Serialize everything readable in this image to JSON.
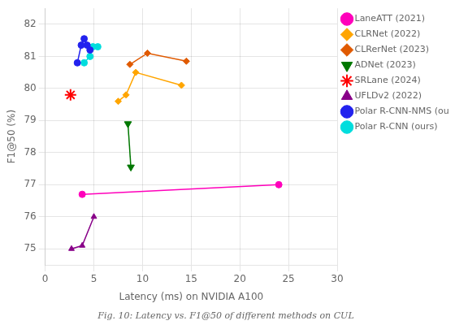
{
  "chart_data": {
    "type": "line",
    "xlabel": "Latency (ms) on NVIDIA A100",
    "ylabel": "F1@50 (%)",
    "caption": "Fig. 10: Latency vs. F1@50 of different methods on CUL",
    "xlim": [
      0,
      30
    ],
    "ylim": [
      74.5,
      82.5
    ],
    "xticks": [
      0,
      5,
      10,
      15,
      20,
      25,
      30
    ],
    "yticks": [
      75,
      76,
      77,
      78,
      79,
      80,
      81,
      82
    ],
    "grid": true,
    "legend": "upper right",
    "series": [
      {
        "name": "LaneATT (2021)",
        "color": "#FF00BB",
        "marker": "circle",
        "x": [
          3.8,
          24.0
        ],
        "values": [
          76.7,
          77.0
        ]
      },
      {
        "name": "CLRNet (2022)",
        "color": "#FFA500",
        "marker": "pentagon",
        "x": [
          7.5,
          8.3,
          9.3,
          14.0
        ],
        "values": [
          79.6,
          79.8,
          80.5,
          80.1
        ]
      },
      {
        "name": "CLRerNet (2023)",
        "color": "#E05A00",
        "marker": "pentagon",
        "x": [
          8.7,
          10.5,
          14.5
        ],
        "values": [
          80.75,
          81.1,
          80.85
        ]
      },
      {
        "name": "ADNet (2023)",
        "color": "#007700",
        "marker": "triangle-down",
        "x": [
          8.5,
          8.8
        ],
        "values": [
          78.9,
          77.55
        ]
      },
      {
        "name": "SRLane (2024)",
        "color": "#FF0000",
        "marker": "star",
        "type": "scatter",
        "x": [
          2.6
        ],
        "values": [
          79.8
        ]
      },
      {
        "name": "UFLDv2 (2022)",
        "color": "#880088",
        "marker": "triangle-up",
        "x": [
          2.7,
          3.8,
          5.0
        ],
        "values": [
          75.0,
          75.1,
          76.0
        ]
      },
      {
        "name": "Polar R-CNN-NMS (ours)",
        "color": "#2222EE",
        "marker": "circle",
        "x": [
          3.3,
          3.7,
          4.0,
          4.3,
          4.6
        ],
        "values": [
          80.8,
          81.35,
          81.55,
          81.35,
          81.2
        ]
      },
      {
        "name": "Polar R-CNN (ours)",
        "color": "#00DDDD",
        "marker": "circle",
        "x": [
          4.0,
          4.6,
          4.9,
          5.4
        ],
        "values": [
          80.8,
          81.0,
          81.3,
          81.3
        ]
      }
    ]
  }
}
